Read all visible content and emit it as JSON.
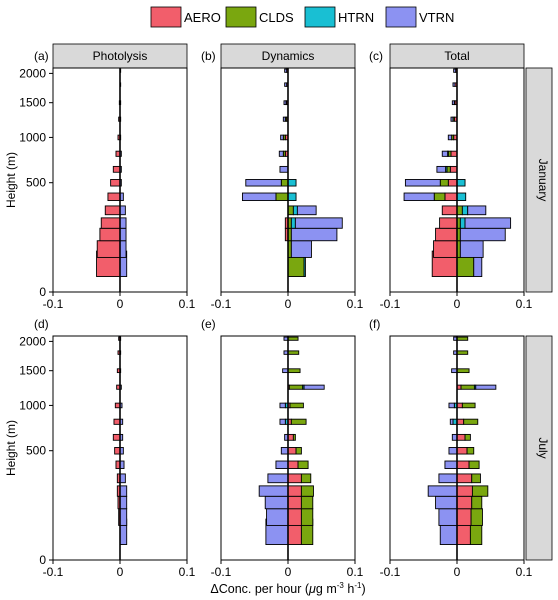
{
  "legend": [
    {
      "name": "AERO",
      "color": "#f25e6b"
    },
    {
      "name": "CLDS",
      "color": "#7aa70f"
    },
    {
      "name": "HTRN",
      "color": "#19bfd3"
    },
    {
      "name": "VTRN",
      "color": "#8c92f2"
    }
  ],
  "row_labels": [
    "January",
    "July"
  ],
  "col_titles": [
    "Photolysis",
    "Dynamics",
    "Total"
  ],
  "panel_tags": [
    "(a)",
    "(b)",
    "(c)",
    "(d)",
    "(e)",
    "(f)"
  ],
  "ylabel": "Height (m)",
  "xlabel_main": "ΔConc. per hour (",
  "xlabel_mu": "μ",
  "xlabel_g": "g m",
  "xlabel_exp1": "-3",
  "xlabel_h": " h",
  "xlabel_exp2": "-1",
  "xlabel_close": ")",
  "chart_data": {
    "type": "bar",
    "orientation": "horizontal",
    "stacking": "diverging",
    "xlim": [
      -0.1,
      0.1
    ],
    "xticks": [
      "-0.1",
      "0",
      "0.1"
    ],
    "ylim": [
      0,
      2100
    ],
    "yscale": "sqrt",
    "yticks": [
      "0",
      "500",
      "1000",
      "1500",
      "2000"
    ],
    "ytick_values": [
      0,
      500,
      1000,
      1500,
      2000
    ],
    "heights": [
      40,
      80,
      140,
      200,
      280,
      380,
      500,
      630,
      800,
      1000,
      1250,
      1500,
      1800,
      2050
    ],
    "bar_height_m": 60,
    "series_order": [
      "AERO",
      "CLDS",
      "HTRN",
      "VTRN"
    ],
    "panels": [
      {
        "tag": "(a)",
        "row": "January",
        "column": "Photolysis",
        "AERO": [
          -0.035,
          -0.034,
          -0.03,
          -0.028,
          -0.022,
          -0.018,
          -0.014,
          -0.01,
          -0.006,
          -0.003,
          -0.002,
          -0.001,
          0,
          0
        ],
        "CLDS": [
          0,
          0,
          0,
          0,
          0,
          0,
          0,
          0,
          0,
          0,
          0,
          0,
          0,
          0
        ],
        "HTRN": [
          0,
          0,
          0,
          0,
          0,
          0,
          0,
          0,
          0,
          0,
          0,
          0,
          0,
          0
        ],
        "VTRN": [
          0.01,
          0.009,
          0.009,
          0.009,
          0.008,
          0.005,
          0.002,
          0.002,
          0.002,
          0.001,
          0.001,
          0.001,
          0.001,
          0.001
        ]
      },
      {
        "tag": "(b)",
        "row": "January",
        "column": "Dynamics",
        "AERO": [
          0,
          0,
          -0.004,
          -0.004,
          0,
          0,
          0,
          0,
          -0.004,
          -0.004,
          -0.002,
          -0.002,
          -0.002,
          -0.002
        ],
        "CLDS": [
          0.024,
          0.005,
          0.005,
          0.005,
          0.008,
          -0.018,
          -0.01,
          0,
          -0.003,
          -0.003,
          -0.002,
          -0.001,
          0,
          0
        ],
        "HTRN": [
          0.002,
          0,
          0,
          0.006,
          0.006,
          0.012,
          0.012,
          0,
          0,
          0,
          0,
          0,
          0,
          0
        ],
        "VTRN": [
          0,
          0.03,
          0.068,
          0.07,
          0.028,
          -0.05,
          -0.053,
          -0.012,
          -0.006,
          -0.004,
          -0.003,
          -0.003,
          -0.003,
          -0.003
        ]
      },
      {
        "tag": "(c)",
        "row": "January",
        "column": "Total",
        "AERO": [
          -0.037,
          -0.035,
          -0.032,
          -0.026,
          -0.022,
          -0.018,
          -0.013,
          -0.01,
          -0.009,
          -0.005,
          -0.004,
          -0.003,
          -0.003,
          -0.002
        ],
        "CLDS": [
          0.025,
          0.005,
          0.005,
          0.005,
          0.008,
          -0.016,
          -0.012,
          -0.005,
          -0.004,
          -0.003,
          -0.002,
          -0.001,
          0,
          0
        ],
        "HTRN": [
          0,
          0,
          0,
          0.007,
          0.008,
          0.013,
          0.012,
          -0.002,
          -0.001,
          0,
          0,
          0,
          0,
          0
        ],
        "VTRN": [
          0.012,
          0.034,
          0.067,
          0.068,
          0.027,
          -0.045,
          -0.052,
          -0.013,
          -0.008,
          -0.005,
          -0.003,
          -0.003,
          -0.003,
          -0.003
        ]
      },
      {
        "tag": "(d)",
        "row": "July",
        "column": "Photolysis",
        "AERO": [
          0,
          -0.002,
          -0.003,
          -0.004,
          -0.004,
          -0.006,
          -0.008,
          -0.01,
          -0.009,
          -0.007,
          -0.005,
          -0.004,
          -0.003,
          -0.002
        ],
        "CLDS": [
          0,
          0,
          0,
          0,
          0,
          0,
          0,
          0,
          0,
          0,
          0,
          0,
          0,
          0
        ],
        "HTRN": [
          0,
          0,
          0,
          0,
          0,
          0,
          0,
          0,
          0,
          0,
          0,
          0,
          0,
          0
        ],
        "VTRN": [
          0.01,
          0.01,
          0.01,
          0.01,
          0.008,
          0.006,
          0.005,
          0.004,
          0.004,
          0.003,
          0.002,
          0.001,
          0.001,
          0.001
        ]
      },
      {
        "tag": "(e)",
        "row": "July",
        "column": "Dynamics",
        "AERO": [
          0.02,
          0.02,
          0.02,
          0.02,
          0.02,
          0.015,
          0.012,
          0.008,
          0.005,
          0.003,
          0.002,
          0,
          0,
          0
        ],
        "CLDS": [
          0.017,
          0.017,
          0.017,
          0.018,
          0.014,
          0.015,
          0.008,
          0.003,
          0.022,
          0.02,
          0.02,
          0.018,
          0.016,
          0.015
        ],
        "HTRN": [
          0,
          0,
          0,
          0,
          0,
          0,
          0,
          0,
          -0.004,
          -0.004,
          0.002,
          0,
          0,
          0
        ],
        "VTRN": [
          -0.033,
          -0.032,
          -0.034,
          -0.043,
          -0.03,
          -0.018,
          -0.01,
          -0.005,
          -0.008,
          -0.008,
          0.03,
          -0.008,
          -0.006,
          -0.006
        ]
      },
      {
        "tag": "(f)",
        "row": "July",
        "column": "Total",
        "AERO": [
          0.02,
          0.021,
          0.022,
          0.023,
          0.022,
          0.018,
          0.015,
          0.012,
          0.01,
          0.008,
          0.006,
          0,
          0,
          0
        ],
        "CLDS": [
          0.017,
          0.017,
          0.015,
          0.023,
          0.013,
          0.015,
          0.01,
          0.008,
          0.021,
          0.019,
          0.02,
          0.018,
          0.016,
          0.016
        ],
        "HTRN": [
          0,
          0,
          0,
          0,
          0,
          0,
          0,
          0,
          -0.006,
          -0.004,
          0.002,
          0,
          0,
          0
        ],
        "VTRN": [
          -0.025,
          -0.027,
          -0.032,
          -0.043,
          -0.027,
          -0.018,
          -0.012,
          -0.007,
          -0.004,
          -0.008,
          0.03,
          -0.008,
          -0.005,
          -0.005
        ]
      }
    ]
  }
}
